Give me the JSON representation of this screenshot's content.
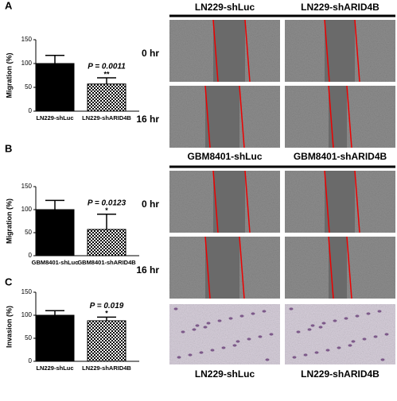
{
  "panels": [
    "A",
    "B",
    "C"
  ],
  "image_columns": {
    "A": [
      "LN229-shLuc",
      "LN229-shARID4B"
    ],
    "B": [
      "GBM8401-shLuc",
      "GBM8401-shARID4B"
    ],
    "C": [
      "LN229-shLuc",
      "LN229-shARID4B"
    ]
  },
  "image_rows": {
    "A": [
      "0 hr",
      "16 hr"
    ],
    "B": [
      "0 hr",
      "16 hr"
    ]
  },
  "chart_data": [
    {
      "type": "bar",
      "y_label": "Migration (%)",
      "categories": [
        "LN229-shLuc",
        "LN229-shARID4B"
      ],
      "values": [
        100,
        57
      ],
      "errors": [
        17,
        13
      ],
      "color": "#000000",
      "bar_styles": [
        "solid",
        "checkered"
      ],
      "ylim": [
        0,
        150
      ],
      "yticks": [
        0,
        50,
        100,
        150
      ],
      "p_value": "P = 0.0011",
      "significance": "**"
    },
    {
      "type": "bar",
      "y_label": "Migration (%)",
      "categories": [
        "GBM8401-shLuc",
        "GBM8401-shARID4B"
      ],
      "values": [
        100,
        57
      ],
      "errors": [
        20,
        33
      ],
      "color": "#000000",
      "bar_styles": [
        "solid",
        "checkered"
      ],
      "ylim": [
        0,
        150
      ],
      "yticks": [
        0,
        50,
        100,
        150
      ],
      "p_value": "P = 0.0123",
      "significance": "*"
    },
    {
      "type": "bar",
      "y_label": "Invasion (%)",
      "categories": [
        "LN229-shLuc",
        "LN229-shARID4B"
      ],
      "values": [
        100,
        88
      ],
      "errors": [
        10,
        8
      ],
      "color": "#000000",
      "bar_styles": [
        "solid",
        "checkered"
      ],
      "ylim": [
        0,
        150
      ],
      "yticks": [
        0,
        50,
        100,
        150
      ],
      "p_value": "P = 0.019",
      "significance": "*"
    }
  ]
}
